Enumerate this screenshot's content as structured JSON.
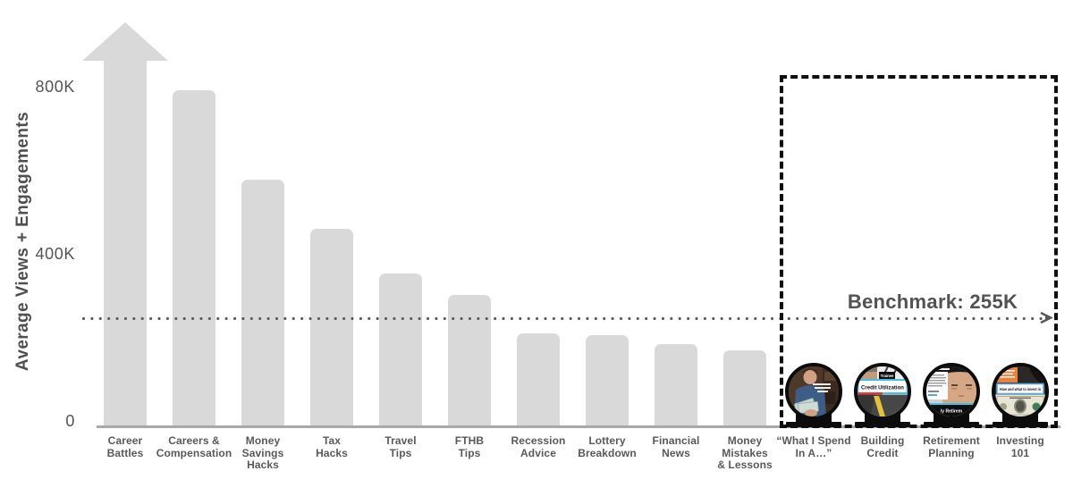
{
  "page": {
    "background": "#ffffff"
  },
  "chart_data": {
    "type": "bar",
    "title": "",
    "xlabel": "",
    "ylabel": "Average Views + Engagements",
    "ylim_k": [
      0,
      900
    ],
    "grid": false,
    "bar_color": "#d9d9d9",
    "yticks": [
      {
        "label": "800K",
        "value_k": 800
      },
      {
        "label": "400K",
        "value_k": 400
      },
      {
        "label": "0",
        "value_k": 0
      }
    ],
    "benchmark": {
      "label": "Benchmark: 255K",
      "value_k": 255,
      "style": "dotted horizontal line with right arrowhead"
    },
    "highlight_box": {
      "style": "black dashed rectangle",
      "contains": [
        "“What I Spend In A…”",
        "Building Credit",
        "Retirement Planning",
        "Investing 101"
      ]
    },
    "categories": [
      {
        "label_lines": [
          "Career",
          "Battles"
        ],
        "value_k": null,
        "off_scale": true,
        "display": "offscale_arrow"
      },
      {
        "label_lines": [
          "Careers &",
          "Compensation"
        ],
        "value_k": 790,
        "display": "bar"
      },
      {
        "label_lines": [
          "Money",
          "Savings",
          "Hacks"
        ],
        "value_k": 580,
        "display": "bar"
      },
      {
        "label_lines": [
          "Tax",
          "Hacks"
        ],
        "value_k": 465,
        "display": "bar"
      },
      {
        "label_lines": [
          "Travel",
          "Tips"
        ],
        "value_k": 360,
        "display": "bar"
      },
      {
        "label_lines": [
          "FTHB",
          "Tips"
        ],
        "value_k": 310,
        "display": "bar"
      },
      {
        "label_lines": [
          "Recession",
          "Advice"
        ],
        "value_k": 220,
        "display": "bar"
      },
      {
        "label_lines": [
          "Lottery",
          "Breakdown"
        ],
        "value_k": 215,
        "display": "bar"
      },
      {
        "label_lines": [
          "Financial",
          "News"
        ],
        "value_k": 195,
        "display": "bar"
      },
      {
        "label_lines": [
          "Money",
          "Mistakes",
          "& Lessons"
        ],
        "value_k": 180,
        "display": "bar"
      },
      {
        "label_lines": [
          "“What I Spend",
          "In A…”"
        ],
        "value_k": null,
        "display": "thumbnail"
      },
      {
        "label_lines": [
          "Building",
          "Credit"
        ],
        "value_k": null,
        "display": "thumbnail"
      },
      {
        "label_lines": [
          "Retirement",
          "Planning"
        ],
        "value_k": null,
        "display": "thumbnail"
      },
      {
        "label_lines": [
          "Investing",
          "101"
        ],
        "value_k": null,
        "display": "thumbnail"
      }
    ]
  },
  "thumbnails": {
    "building_credit": {
      "tag_text": "Trainee",
      "banner_text": "Credit Utilization"
    },
    "retirement_planning": {
      "caption_text": "ly Retirem"
    },
    "investing_101": {
      "banner_text": "How and what to invest in"
    }
  },
  "colors": {
    "bar": "#d9d9d9",
    "axis": "#a8a8a8",
    "text": "#595959",
    "benchmark_line": "#5a5a5a",
    "dashed_box": "#0f0f0f",
    "banner_accent_cyan": "#3cc4e8",
    "banner_accent_red": "#e23b3b",
    "banner_accent_blue": "#5aa7de",
    "orange_card": "#e8823d"
  }
}
